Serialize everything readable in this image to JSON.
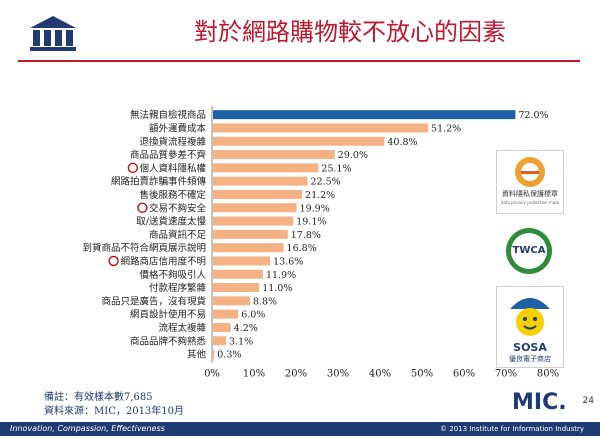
{
  "title": "對於網路購物較不放心的因素",
  "chart_data": {
    "type": "bar",
    "orientation": "horizontal",
    "categories": [
      "無法親自檢視商品",
      "額外運費成本",
      "退換貨流程複雜",
      "商品品質參差不齊",
      "個人資料隱私權",
      "網路拍賣詐騙事件頻傳",
      "售後服務不確定",
      "交易不夠安全",
      "取/送貨速度太慢",
      "商品資訊不足",
      "到貨商品不符合網頁展示說明",
      "網路商店信用度不明",
      "價格不夠吸引人",
      "付款程序繁雜",
      "商品只是廣告，沒有現貨",
      "網頁設計使用不易",
      "流程太複雜",
      "商品品牌不夠熟悉",
      "其他"
    ],
    "values": [
      72.0,
      51.2,
      40.8,
      29.0,
      25.1,
      22.5,
      21.2,
      19.9,
      19.1,
      17.8,
      16.8,
      13.6,
      11.9,
      11.0,
      8.8,
      6.0,
      4.2,
      3.1,
      0.3
    ],
    "value_labels": [
      "72.0%",
      "51.2%",
      "40.8%",
      "29.0%",
      "25.1%",
      "22.5%",
      "21.2%",
      "19.9%",
      "19.1%",
      "17.8%",
      "16.8%",
      "13.6%",
      "11.9%",
      "11.0%",
      "8.8%",
      "6.0%",
      "4.2%",
      "3.1%",
      "0.3%"
    ],
    "highlighted": [
      4,
      7,
      11
    ],
    "xlim": [
      0,
      80
    ],
    "xticks": [
      "0%",
      "10%",
      "20%",
      "30%",
      "40%",
      "50%",
      "60%",
      "70%",
      "80%"
    ],
    "colors": {
      "top": "#1f5fa6",
      "default": "#f4b183",
      "circle": "#c00000"
    }
  },
  "notes": {
    "note1": "備註：有效樣本數7,685",
    "note2": "資料來源：MIC，2013年10月"
  },
  "logo": "MIC.",
  "footer": {
    "left": "Innovation, Compassion, Effectiveness",
    "right": "© 2013 Institute for Information Industry"
  },
  "page_number": "24",
  "badges": {
    "privacy": "資料隱私保護標章",
    "privacy_sub": "data privacy protection mark",
    "twca": "TWCA",
    "sosa": "SOSA",
    "sosa_sub": "優良電子商店"
  }
}
